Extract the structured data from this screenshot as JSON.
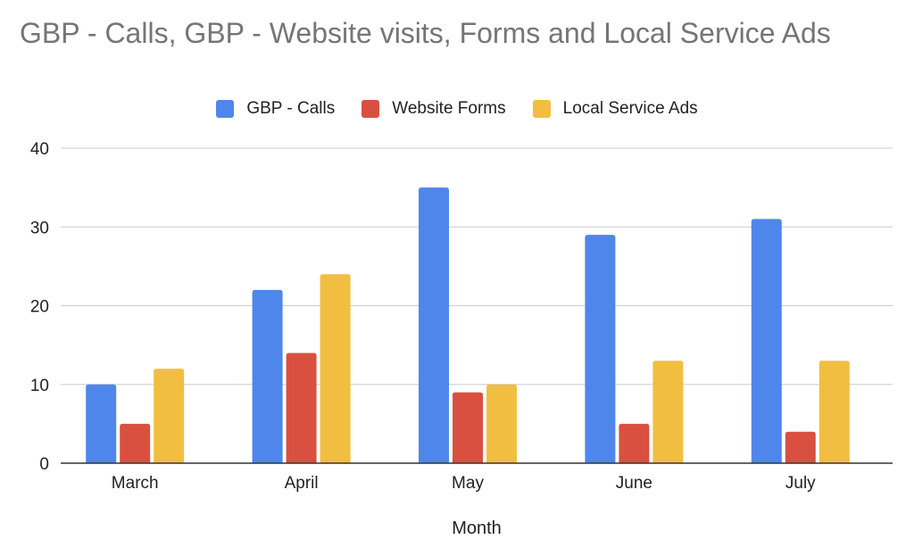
{
  "chart_data": {
    "type": "bar",
    "title": "GBP - Calls, GBP - Website visits, Forms and Local Service Ads",
    "xlabel": "Month",
    "ylabel": "",
    "categories": [
      "March",
      "April",
      "May",
      "June",
      "July"
    ],
    "series": [
      {
        "name": "GBP - Calls",
        "color": "#4F86EC",
        "values": [
          10,
          22,
          35,
          29,
          31
        ]
      },
      {
        "name": "Website Forms",
        "color": "#D95040",
        "values": [
          5,
          14,
          9,
          5,
          4
        ]
      },
      {
        "name": "Local Service Ads",
        "color": "#F2BE42",
        "values": [
          12,
          24,
          10,
          13,
          13
        ]
      }
    ],
    "ylim": [
      0,
      40
    ],
    "yticks": [
      0,
      10,
      20,
      30,
      40
    ],
    "grid": true,
    "legend_position": "top"
  }
}
